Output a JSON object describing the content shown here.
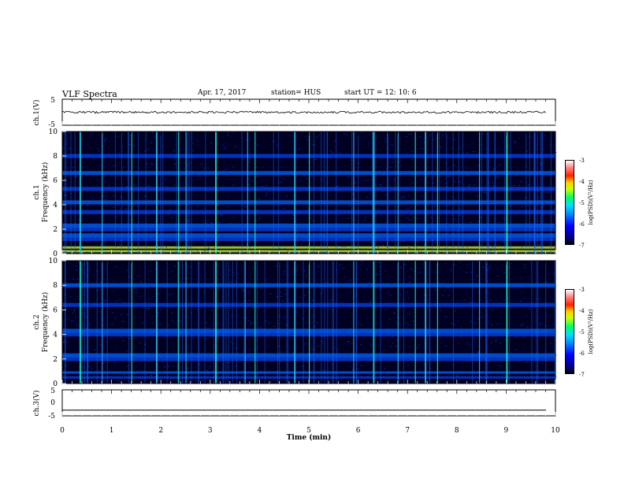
{
  "header": {
    "title": "VLF Spectra",
    "date": "Apr. 17, 2017",
    "station": "station= HUS",
    "start_ut": "start  UT  =    12: 10: 6"
  },
  "chart_data": [
    {
      "type": "line",
      "ylabel": "ch.1(V)",
      "ylim": [
        -5,
        5
      ],
      "y_ticks": [
        "5",
        "-5"
      ],
      "xlim": [
        0,
        10
      ],
      "series": [
        {
          "values_summary": "noisy trace near 0 V",
          "mean": 0
        }
      ]
    },
    {
      "type": "heatmap",
      "ylabel_top": "ch.1",
      "ylabel": "Frequency  (kHz)",
      "ylim": [
        0,
        10
      ],
      "y_ticks": [
        "0",
        "2",
        "4",
        "6",
        "8",
        "10"
      ],
      "xlim": [
        0,
        10
      ],
      "colorbar": {
        "label": "log(PSD)(V²/Hz)",
        "range": [
          -7,
          -3
        ],
        "ticks": [
          "-3",
          "-4",
          "-5",
          "-6",
          "-7"
        ]
      },
      "bright_bands_khz": [
        0.2,
        0.5,
        1.2,
        1.5,
        2.0,
        2.3,
        3.4,
        4.2,
        5.3,
        6.6,
        8.0
      ],
      "vertical_bursts_min": [
        0.35,
        0.8,
        1.4,
        1.9,
        2.35,
        2.5,
        3.1,
        3.75,
        3.9,
        4.7,
        5.0,
        5.9,
        6.3,
        6.8,
        7.15,
        7.35,
        7.6,
        8.45,
        9.0
      ]
    },
    {
      "type": "heatmap",
      "ylabel_top": "ch.2",
      "ylabel": "Frequency  (kHz)",
      "ylim": [
        0,
        10
      ],
      "y_ticks": [
        "0",
        "2",
        "4",
        "6",
        "8",
        "10"
      ],
      "xlim": [
        0,
        10
      ],
      "colorbar": {
        "label": "log(PSD)(V²/Hz)",
        "range": [
          -7,
          -3
        ],
        "ticks": [
          "-3",
          "-4",
          "-5",
          "-6",
          "-7"
        ]
      },
      "bright_bands_khz": [
        0.5,
        0.9,
        2.0,
        2.3,
        4.0,
        4.3,
        6.4,
        8.0
      ],
      "vertical_bursts_min": [
        0.35,
        0.8,
        1.4,
        1.9,
        2.35,
        2.5,
        3.1,
        3.7,
        3.9,
        4.7,
        5.0,
        5.9,
        6.3,
        6.8,
        7.15,
        7.35,
        7.6,
        8.45,
        9.0
      ]
    },
    {
      "type": "line",
      "ylabel": "ch.3(V)",
      "ylim": [
        -5,
        5
      ],
      "y_ticks": [
        "5",
        "0",
        "-5"
      ],
      "xlim": [
        0,
        10
      ],
      "xlabel": "Time  (min)",
      "x_ticks": [
        "0",
        "1",
        "2",
        "3",
        "4",
        "5",
        "6",
        "7",
        "8",
        "9",
        "10"
      ],
      "series": [
        {
          "values_summary": "flat line",
          "value": -2.8
        }
      ]
    }
  ],
  "colors": {
    "background": "#ffffff",
    "axes": "#000000",
    "spectrogram_low": "#000022",
    "spectrogram_mid": "#0033ff",
    "spectrogram_high": "#00ffcc"
  }
}
